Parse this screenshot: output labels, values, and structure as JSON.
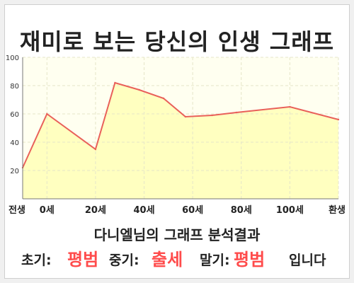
{
  "title": "재미로 보는 당신의 인생 그래프",
  "subtitle": "다니엘님의 그래프 분석결과",
  "result": {
    "early_label": "초기:",
    "early_value": "평범",
    "mid_label": "중기:",
    "mid_value": "출세",
    "late_label": "말기:",
    "late_value": "평범",
    "suffix": "입니다"
  },
  "colors": {
    "accent": "#ff4b4b",
    "line": "#e9605a",
    "fill": "#ffffc0",
    "plot_bg": "#fffff0",
    "grid": "#e6e6c8"
  },
  "chart_data": {
    "type": "area",
    "x": [
      -10,
      0,
      20,
      28,
      38,
      48,
      57,
      68,
      78,
      100,
      120
    ],
    "values": [
      22,
      60,
      35,
      82,
      77,
      71,
      58,
      59,
      61,
      65,
      56
    ],
    "categories": [
      "전생",
      "0세",
      "20세",
      "40세",
      "60세",
      "80세",
      "100세",
      "환생"
    ],
    "category_x": [
      -10,
      0,
      20,
      40,
      60,
      80,
      100,
      120
    ],
    "y_ticks": [
      20,
      40,
      60,
      80,
      100
    ],
    "ylim": [
      0,
      100
    ],
    "xlim": [
      -10,
      120
    ],
    "grid": true,
    "title": "",
    "xlabel": "",
    "ylabel": ""
  }
}
